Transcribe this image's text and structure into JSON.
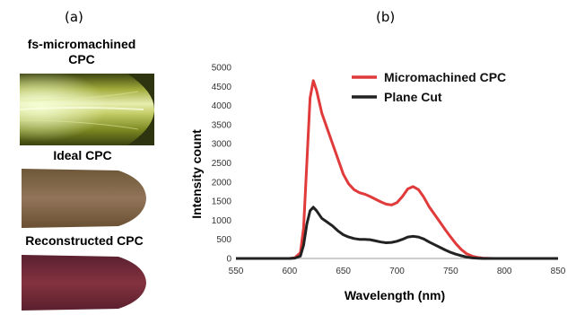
{
  "panel_a": {
    "label": "(a)",
    "images": [
      {
        "label_line1": "fs-micromachined",
        "label_line2": "CPC",
        "color": "#8c9a2a"
      },
      {
        "label": "Ideal CPC",
        "color": "#8a6a4a"
      },
      {
        "label": "Reconstructed CPC",
        "color": "#7a2f3c"
      }
    ]
  },
  "panel_b": {
    "label": "(b)"
  },
  "chart_data": {
    "type": "line",
    "xlabel": "Wavelength (nm)",
    "ylabel": "Intensity count",
    "xlim": [
      550,
      850
    ],
    "ylim": [
      0,
      5000
    ],
    "x_ticks": [
      550,
      600,
      650,
      700,
      750,
      800,
      850
    ],
    "y_ticks": [
      0,
      500,
      1000,
      1500,
      2000,
      2500,
      3000,
      3500,
      4000,
      4500,
      5000
    ],
    "grid": false,
    "legend_position": "top-right",
    "series": [
      {
        "name": "Micromachined CPC",
        "color": "#e03a3a",
        "x": [
          550,
          600,
          605,
          610,
          613,
          616,
          619,
          622,
          625,
          630,
          635,
          640,
          645,
          650,
          655,
          660,
          665,
          670,
          675,
          680,
          685,
          690,
          695,
          700,
          705,
          710,
          715,
          720,
          725,
          730,
          735,
          740,
          745,
          750,
          755,
          760,
          765,
          770,
          775,
          780,
          790,
          850
        ],
        "y": [
          0,
          0,
          20,
          150,
          800,
          2500,
          4200,
          4650,
          4400,
          3800,
          3400,
          3000,
          2600,
          2200,
          1950,
          1800,
          1720,
          1680,
          1620,
          1550,
          1480,
          1420,
          1400,
          1460,
          1620,
          1820,
          1880,
          1800,
          1600,
          1350,
          1150,
          950,
          750,
          560,
          380,
          230,
          120,
          60,
          25,
          10,
          0,
          0
        ]
      },
      {
        "name": "Plane Cut",
        "color": "#222222",
        "x": [
          550,
          600,
          605,
          610,
          613,
          616,
          619,
          622,
          625,
          630,
          635,
          640,
          645,
          650,
          655,
          660,
          665,
          670,
          675,
          680,
          685,
          690,
          695,
          700,
          705,
          710,
          715,
          720,
          725,
          730,
          735,
          740,
          745,
          750,
          755,
          760,
          765,
          770,
          775,
          780,
          790,
          850
        ],
        "y": [
          0,
          0,
          10,
          60,
          350,
          900,
          1250,
          1340,
          1250,
          1050,
          950,
          850,
          720,
          620,
          560,
          520,
          500,
          500,
          490,
          460,
          430,
          410,
          420,
          450,
          500,
          560,
          580,
          560,
          510,
          430,
          360,
          290,
          220,
          160,
          110,
          70,
          35,
          15,
          5,
          0,
          0,
          0
        ]
      }
    ]
  }
}
